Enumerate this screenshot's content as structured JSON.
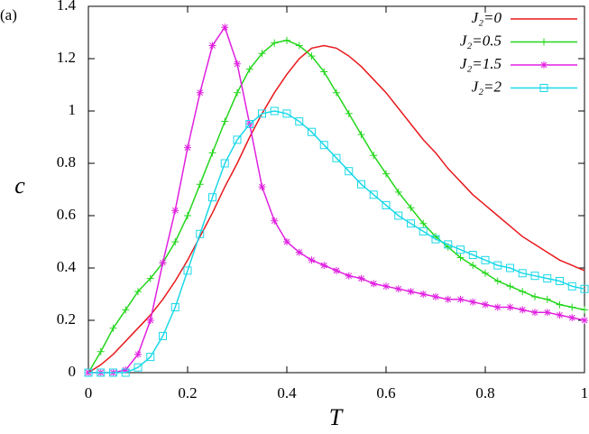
{
  "chart_data": {
    "type": "line",
    "panel_label": "(a)",
    "xlabel": "T",
    "ylabel": "c",
    "x": [
      0,
      0.025,
      0.05,
      0.075,
      0.1,
      0.125,
      0.15,
      0.175,
      0.2,
      0.225,
      0.25,
      0.275,
      0.3,
      0.325,
      0.35,
      0.375,
      0.4,
      0.425,
      0.45,
      0.475,
      0.5,
      0.525,
      0.55,
      0.575,
      0.6,
      0.625,
      0.65,
      0.675,
      0.7,
      0.725,
      0.75,
      0.775,
      0.8,
      0.825,
      0.85,
      0.875,
      0.9,
      0.925,
      0.95,
      0.975,
      1
    ],
    "series": [
      {
        "name": "J₂=0",
        "color": "#e8191c",
        "marker": "none",
        "values": [
          0,
          0.03,
          0.07,
          0.12,
          0.17,
          0.22,
          0.28,
          0.35,
          0.43,
          0.52,
          0.61,
          0.71,
          0.8,
          0.9,
          0.99,
          1.07,
          1.14,
          1.2,
          1.24,
          1.25,
          1.24,
          1.21,
          1.17,
          1.12,
          1.07,
          1.01,
          0.95,
          0.89,
          0.84,
          0.78,
          0.73,
          0.68,
          0.64,
          0.6,
          0.56,
          0.52,
          0.49,
          0.46,
          0.43,
          0.41,
          0.39
        ]
      },
      {
        "name": "J₂=0.5",
        "color": "#22d61a",
        "marker": "plus",
        "values": [
          0,
          0.08,
          0.17,
          0.24,
          0.31,
          0.36,
          0.42,
          0.5,
          0.6,
          0.72,
          0.84,
          0.96,
          1.07,
          1.16,
          1.22,
          1.26,
          1.27,
          1.25,
          1.21,
          1.15,
          1.07,
          0.99,
          0.91,
          0.83,
          0.76,
          0.69,
          0.63,
          0.57,
          0.52,
          0.48,
          0.44,
          0.41,
          0.38,
          0.35,
          0.33,
          0.31,
          0.29,
          0.28,
          0.26,
          0.25,
          0.24
        ]
      },
      {
        "name": "J₂=1.5",
        "color": "#e020e0",
        "marker": "star",
        "values": [
          0,
          0,
          0,
          0.01,
          0.07,
          0.2,
          0.42,
          0.62,
          0.86,
          1.07,
          1.25,
          1.32,
          1.18,
          0.95,
          0.71,
          0.58,
          0.5,
          0.46,
          0.43,
          0.41,
          0.39,
          0.37,
          0.36,
          0.34,
          0.33,
          0.32,
          0.31,
          0.3,
          0.29,
          0.28,
          0.28,
          0.27,
          0.26,
          0.25,
          0.25,
          0.24,
          0.23,
          0.23,
          0.22,
          0.21,
          0.2
        ]
      },
      {
        "name": "J₂=2",
        "color": "#1ad8e8",
        "marker": "square",
        "values": [
          0,
          0,
          0,
          0,
          0.02,
          0.06,
          0.14,
          0.25,
          0.39,
          0.53,
          0.67,
          0.8,
          0.89,
          0.95,
          0.99,
          1.0,
          0.99,
          0.96,
          0.92,
          0.87,
          0.82,
          0.77,
          0.72,
          0.68,
          0.64,
          0.6,
          0.57,
          0.54,
          0.51,
          0.49,
          0.47,
          0.45,
          0.43,
          0.41,
          0.4,
          0.38,
          0.37,
          0.36,
          0.35,
          0.33,
          0.32
        ]
      }
    ],
    "xlim": [
      0,
      1
    ],
    "ylim": [
      0,
      1.4
    ],
    "xticks": [
      0,
      0.2,
      0.4,
      0.6,
      0.8,
      1
    ],
    "yticks": [
      0,
      0.2,
      0.4,
      0.6,
      0.8,
      1,
      1.2,
      1.4
    ],
    "legend": "upper-right"
  }
}
